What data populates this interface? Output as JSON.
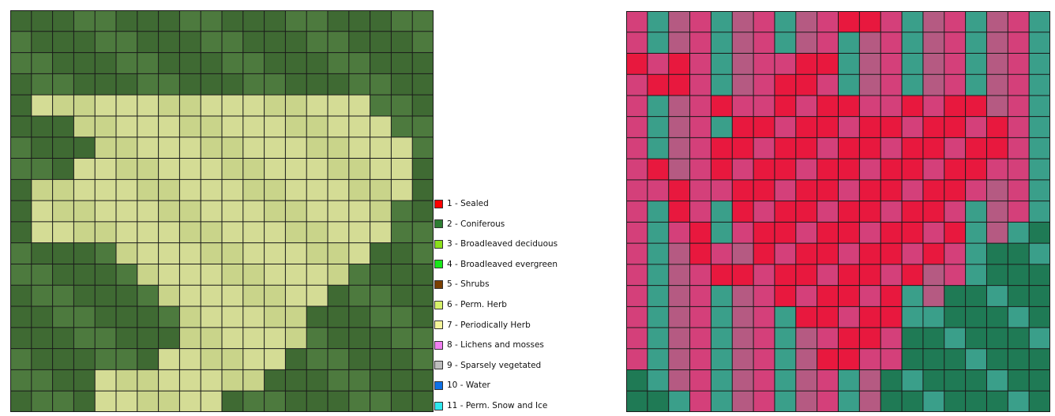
{
  "legend": {
    "items": [
      {
        "label": "1 - Sealed",
        "color": "#ff0000"
      },
      {
        "label": "2 - Coniferous",
        "color": "#2e7d32"
      },
      {
        "label": "3 - Broadleaved deciduous",
        "color": "#8be01c"
      },
      {
        "label": "4 - Broadleaved evergreen",
        "color": "#19e619"
      },
      {
        "label": "5 - Shrubs",
        "color": "#7a3f00"
      },
      {
        "label": "6 - Perm. Herb",
        "color": "#d6f06a"
      },
      {
        "label": "7 - Periodically Herb",
        "color": "#f4f49a"
      },
      {
        "label": "8 - Lichens and mosses",
        "color": "#f07ff0"
      },
      {
        "label": "9 - Sparsely vegetated",
        "color": "#bdbdbd"
      },
      {
        "label": "10 - Water",
        "color": "#0f72e6"
      },
      {
        "label": "11 - Perm. Snow and Ice",
        "color": "#2fe8ee"
      }
    ]
  },
  "left_map": {
    "grid": {
      "cols": 20,
      "rows": 19
    },
    "colors": {
      "forest": "#4d7a3e",
      "forest_dark": "#3f6a33",
      "meadow": "#c9d48a",
      "meadow_alt": "#d4dc95",
      "gridline": "#1a1a1a"
    },
    "meadow_cells": [
      [
        1,
        4
      ],
      [
        2,
        4
      ],
      [
        3,
        4
      ],
      [
        4,
        4
      ],
      [
        5,
        4
      ],
      [
        6,
        4
      ],
      [
        7,
        4
      ],
      [
        8,
        4
      ],
      [
        9,
        4
      ],
      [
        10,
        4
      ],
      [
        11,
        4
      ],
      [
        12,
        4
      ],
      [
        13,
        4
      ],
      [
        14,
        4
      ],
      [
        15,
        4
      ],
      [
        16,
        4
      ],
      [
        3,
        5
      ],
      [
        4,
        5
      ],
      [
        5,
        5
      ],
      [
        6,
        5
      ],
      [
        7,
        5
      ],
      [
        8,
        5
      ],
      [
        9,
        5
      ],
      [
        10,
        5
      ],
      [
        11,
        5
      ],
      [
        12,
        5
      ],
      [
        13,
        5
      ],
      [
        14,
        5
      ],
      [
        15,
        5
      ],
      [
        16,
        5
      ],
      [
        17,
        5
      ],
      [
        4,
        6
      ],
      [
        5,
        6
      ],
      [
        6,
        6
      ],
      [
        7,
        6
      ],
      [
        8,
        6
      ],
      [
        9,
        6
      ],
      [
        10,
        6
      ],
      [
        11,
        6
      ],
      [
        12,
        6
      ],
      [
        13,
        6
      ],
      [
        14,
        6
      ],
      [
        15,
        6
      ],
      [
        16,
        6
      ],
      [
        17,
        6
      ],
      [
        18,
        6
      ],
      [
        3,
        7
      ],
      [
        4,
        7
      ],
      [
        5,
        7
      ],
      [
        6,
        7
      ],
      [
        7,
        7
      ],
      [
        8,
        7
      ],
      [
        9,
        7
      ],
      [
        10,
        7
      ],
      [
        11,
        7
      ],
      [
        12,
        7
      ],
      [
        13,
        7
      ],
      [
        14,
        7
      ],
      [
        15,
        7
      ],
      [
        16,
        7
      ],
      [
        17,
        7
      ],
      [
        18,
        7
      ],
      [
        1,
        8
      ],
      [
        2,
        8
      ],
      [
        3,
        8
      ],
      [
        4,
        8
      ],
      [
        5,
        8
      ],
      [
        6,
        8
      ],
      [
        7,
        8
      ],
      [
        8,
        8
      ],
      [
        9,
        8
      ],
      [
        10,
        8
      ],
      [
        11,
        8
      ],
      [
        12,
        8
      ],
      [
        13,
        8
      ],
      [
        14,
        8
      ],
      [
        15,
        8
      ],
      [
        16,
        8
      ],
      [
        17,
        8
      ],
      [
        18,
        8
      ],
      [
        1,
        9
      ],
      [
        2,
        9
      ],
      [
        3,
        9
      ],
      [
        4,
        9
      ],
      [
        5,
        9
      ],
      [
        6,
        9
      ],
      [
        7,
        9
      ],
      [
        8,
        9
      ],
      [
        9,
        9
      ],
      [
        10,
        9
      ],
      [
        11,
        9
      ],
      [
        12,
        9
      ],
      [
        13,
        9
      ],
      [
        14,
        9
      ],
      [
        15,
        9
      ],
      [
        16,
        9
      ],
      [
        17,
        9
      ],
      [
        1,
        10
      ],
      [
        2,
        10
      ],
      [
        3,
        10
      ],
      [
        4,
        10
      ],
      [
        5,
        10
      ],
      [
        6,
        10
      ],
      [
        7,
        10
      ],
      [
        8,
        10
      ],
      [
        9,
        10
      ],
      [
        10,
        10
      ],
      [
        11,
        10
      ],
      [
        12,
        10
      ],
      [
        13,
        10
      ],
      [
        14,
        10
      ],
      [
        15,
        10
      ],
      [
        16,
        10
      ],
      [
        17,
        10
      ],
      [
        5,
        11
      ],
      [
        6,
        11
      ],
      [
        7,
        11
      ],
      [
        8,
        11
      ],
      [
        9,
        11
      ],
      [
        10,
        11
      ],
      [
        11,
        11
      ],
      [
        12,
        11
      ],
      [
        13,
        11
      ],
      [
        14,
        11
      ],
      [
        15,
        11
      ],
      [
        16,
        11
      ],
      [
        6,
        12
      ],
      [
        7,
        12
      ],
      [
        8,
        12
      ],
      [
        9,
        12
      ],
      [
        10,
        12
      ],
      [
        11,
        12
      ],
      [
        12,
        12
      ],
      [
        13,
        12
      ],
      [
        14,
        12
      ],
      [
        15,
        12
      ],
      [
        7,
        13
      ],
      [
        8,
        13
      ],
      [
        9,
        13
      ],
      [
        10,
        13
      ],
      [
        11,
        13
      ],
      [
        12,
        13
      ],
      [
        13,
        13
      ],
      [
        14,
        13
      ],
      [
        8,
        14
      ],
      [
        9,
        14
      ],
      [
        10,
        14
      ],
      [
        11,
        14
      ],
      [
        12,
        14
      ],
      [
        13,
        14
      ],
      [
        8,
        15
      ],
      [
        9,
        15
      ],
      [
        10,
        15
      ],
      [
        11,
        15
      ],
      [
        12,
        15
      ],
      [
        13,
        15
      ],
      [
        7,
        16
      ],
      [
        8,
        16
      ],
      [
        9,
        16
      ],
      [
        10,
        16
      ],
      [
        11,
        16
      ],
      [
        12,
        16
      ],
      [
        4,
        17
      ],
      [
        5,
        17
      ],
      [
        6,
        17
      ],
      [
        7,
        17
      ],
      [
        8,
        17
      ],
      [
        9,
        17
      ],
      [
        10,
        17
      ],
      [
        11,
        17
      ],
      [
        4,
        18
      ],
      [
        5,
        18
      ],
      [
        6,
        18
      ],
      [
        7,
        18
      ],
      [
        8,
        18
      ],
      [
        9,
        18
      ]
    ]
  },
  "right_map": {
    "grid": {
      "cols": 20,
      "rows": 19
    },
    "colors": {
      "background": "#2f8a73",
      "red": "#e8183e",
      "pink": "#d4407a",
      "mauve": "#b55a82",
      "teal": "#3a9f8a",
      "green": "#1f7a55",
      "gridline": "#1a1a1a"
    },
    "red_cells": [
      [
        10,
        0
      ],
      [
        11,
        0
      ],
      [
        12,
        0
      ],
      [
        0,
        2
      ],
      [
        1,
        2
      ],
      [
        2,
        2
      ],
      [
        7,
        2
      ],
      [
        8,
        2
      ],
      [
        9,
        2
      ],
      [
        0,
        3
      ],
      [
        1,
        3
      ],
      [
        2,
        3
      ],
      [
        6,
        3
      ],
      [
        7,
        3
      ],
      [
        8,
        3
      ],
      [
        9,
        3
      ],
      [
        4,
        4
      ],
      [
        5,
        4
      ],
      [
        7,
        4
      ],
      [
        8,
        4
      ],
      [
        9,
        4
      ],
      [
        10,
        4
      ],
      [
        11,
        4
      ],
      [
        13,
        4
      ],
      [
        14,
        4
      ],
      [
        15,
        4
      ],
      [
        16,
        4
      ],
      [
        5,
        5
      ],
      [
        6,
        5
      ],
      [
        7,
        5
      ],
      [
        8,
        5
      ],
      [
        9,
        5
      ],
      [
        10,
        5
      ],
      [
        11,
        5
      ],
      [
        12,
        5
      ],
      [
        13,
        5
      ],
      [
        14,
        5
      ],
      [
        15,
        5
      ],
      [
        16,
        5
      ],
      [
        17,
        5
      ],
      [
        3,
        6
      ],
      [
        4,
        6
      ],
      [
        5,
        6
      ],
      [
        6,
        6
      ],
      [
        7,
        6
      ],
      [
        8,
        6
      ],
      [
        9,
        6
      ],
      [
        10,
        6
      ],
      [
        11,
        6
      ],
      [
        12,
        6
      ],
      [
        13,
        6
      ],
      [
        14,
        6
      ],
      [
        15,
        6
      ],
      [
        16,
        6
      ],
      [
        17,
        6
      ],
      [
        4,
        7
      ],
      [
        5,
        7
      ],
      [
        6,
        7
      ],
      [
        7,
        7
      ],
      [
        8,
        7
      ],
      [
        9,
        7
      ],
      [
        10,
        7
      ],
      [
        11,
        7
      ],
      [
        12,
        7
      ],
      [
        13,
        7
      ],
      [
        14,
        7
      ],
      [
        15,
        7
      ],
      [
        16,
        7
      ],
      [
        17,
        7
      ],
      [
        4,
        8
      ],
      [
        5,
        8
      ],
      [
        6,
        8
      ],
      [
        7,
        8
      ],
      [
        8,
        8
      ],
      [
        9,
        8
      ],
      [
        10,
        8
      ],
      [
        11,
        8
      ],
      [
        12,
        8
      ],
      [
        13,
        8
      ],
      [
        14,
        8
      ],
      [
        15,
        8
      ],
      [
        16,
        8
      ],
      [
        5,
        9
      ],
      [
        6,
        9
      ],
      [
        7,
        9
      ],
      [
        8,
        9
      ],
      [
        9,
        9
      ],
      [
        10,
        9
      ],
      [
        11,
        9
      ],
      [
        12,
        9
      ],
      [
        13,
        9
      ],
      [
        14,
        9
      ],
      [
        15,
        9
      ],
      [
        5,
        10
      ],
      [
        6,
        10
      ],
      [
        7,
        10
      ],
      [
        8,
        10
      ],
      [
        9,
        10
      ],
      [
        10,
        10
      ],
      [
        11,
        10
      ],
      [
        12,
        10
      ],
      [
        13,
        10
      ],
      [
        14,
        10
      ],
      [
        15,
        10
      ],
      [
        6,
        11
      ],
      [
        7,
        11
      ],
      [
        8,
        11
      ],
      [
        9,
        11
      ],
      [
        10,
        11
      ],
      [
        11,
        11
      ],
      [
        12,
        11
      ],
      [
        13,
        11
      ],
      [
        14,
        11
      ],
      [
        7,
        12
      ],
      [
        8,
        12
      ],
      [
        9,
        12
      ],
      [
        10,
        12
      ],
      [
        11,
        12
      ],
      [
        12,
        12
      ],
      [
        13,
        12
      ],
      [
        7,
        13
      ],
      [
        8,
        13
      ],
      [
        9,
        13
      ],
      [
        10,
        13
      ],
      [
        11,
        13
      ],
      [
        12,
        13
      ],
      [
        8,
        14
      ],
      [
        9,
        14
      ],
      [
        10,
        14
      ],
      [
        11,
        14
      ],
      [
        12,
        14
      ],
      [
        9,
        15
      ],
      [
        10,
        15
      ],
      [
        11,
        15
      ],
      [
        12,
        15
      ],
      [
        9,
        16
      ],
      [
        10,
        16
      ],
      [
        11,
        16
      ],
      [
        1,
        7
      ],
      [
        1,
        8
      ],
      [
        2,
        8
      ],
      [
        2,
        9
      ],
      [
        3,
        9
      ],
      [
        2,
        10
      ],
      [
        3,
        10
      ],
      [
        3,
        11
      ],
      [
        4,
        11
      ],
      [
        4,
        12
      ],
      [
        5,
        12
      ]
    ],
    "green_cells": [
      [
        18,
        10
      ],
      [
        19,
        10
      ],
      [
        17,
        11
      ],
      [
        18,
        11
      ],
      [
        19,
        11
      ],
      [
        16,
        12
      ],
      [
        17,
        12
      ],
      [
        18,
        12
      ],
      [
        19,
        12
      ],
      [
        15,
        13
      ],
      [
        16,
        13
      ],
      [
        17,
        13
      ],
      [
        18,
        13
      ],
      [
        19,
        13
      ],
      [
        14,
        14
      ],
      [
        15,
        14
      ],
      [
        16,
        14
      ],
      [
        17,
        14
      ],
      [
        18,
        14
      ],
      [
        19,
        14
      ],
      [
        13,
        15
      ],
      [
        14,
        15
      ],
      [
        15,
        15
      ],
      [
        16,
        15
      ],
      [
        17,
        15
      ],
      [
        18,
        15
      ],
      [
        19,
        15
      ],
      [
        13,
        16
      ],
      [
        14,
        16
      ],
      [
        15,
        16
      ],
      [
        16,
        16
      ],
      [
        17,
        16
      ],
      [
        18,
        16
      ],
      [
        19,
        16
      ],
      [
        12,
        17
      ],
      [
        13,
        17
      ],
      [
        14,
        17
      ],
      [
        15,
        17
      ],
      [
        16,
        17
      ],
      [
        17,
        17
      ],
      [
        18,
        17
      ],
      [
        19,
        17
      ],
      [
        12,
        18
      ],
      [
        13,
        18
      ],
      [
        14,
        18
      ],
      [
        15,
        18
      ],
      [
        16,
        18
      ],
      [
        17,
        18
      ],
      [
        18,
        18
      ],
      [
        19,
        18
      ],
      [
        0,
        17
      ],
      [
        1,
        17
      ],
      [
        0,
        18
      ],
      [
        1,
        18
      ],
      [
        2,
        18
      ]
    ]
  }
}
